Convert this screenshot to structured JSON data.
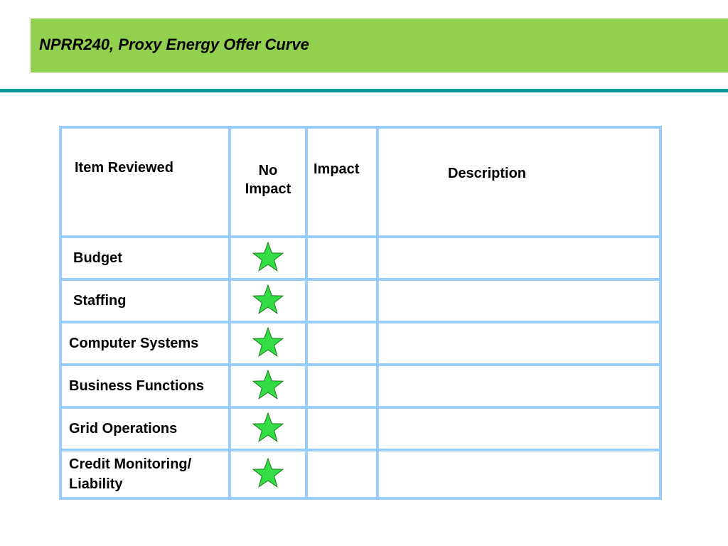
{
  "slide": {
    "title": "NPRR240, Proxy Energy Offer Curve"
  },
  "colors": {
    "title_bar": "#92d050",
    "rule": "#00999a",
    "grid_lines": "#99ccff",
    "star_fill": "#33dd44"
  },
  "table": {
    "headers": {
      "item": "Item Reviewed",
      "no_impact_line1": "No",
      "no_impact_line2": "Impact",
      "impact": "Impact",
      "description": "Description"
    },
    "rows": [
      {
        "item": "Budget",
        "no_impact": "star-icon",
        "impact": "",
        "description": ""
      },
      {
        "item": "Staffing",
        "no_impact": "star-icon",
        "impact": "",
        "description": ""
      },
      {
        "item": "Computer Systems",
        "no_impact": "star-icon",
        "impact": "",
        "description": ""
      },
      {
        "item": "Business Functions",
        "no_impact": "star-icon",
        "impact": "",
        "description": ""
      },
      {
        "item": "Grid Operations",
        "no_impact": "star-icon",
        "impact": "",
        "description": ""
      },
      {
        "item_line1": "Credit Monitoring/",
        "item_line2": "Liability",
        "no_impact": "star-icon",
        "impact": "",
        "description": ""
      }
    ]
  }
}
